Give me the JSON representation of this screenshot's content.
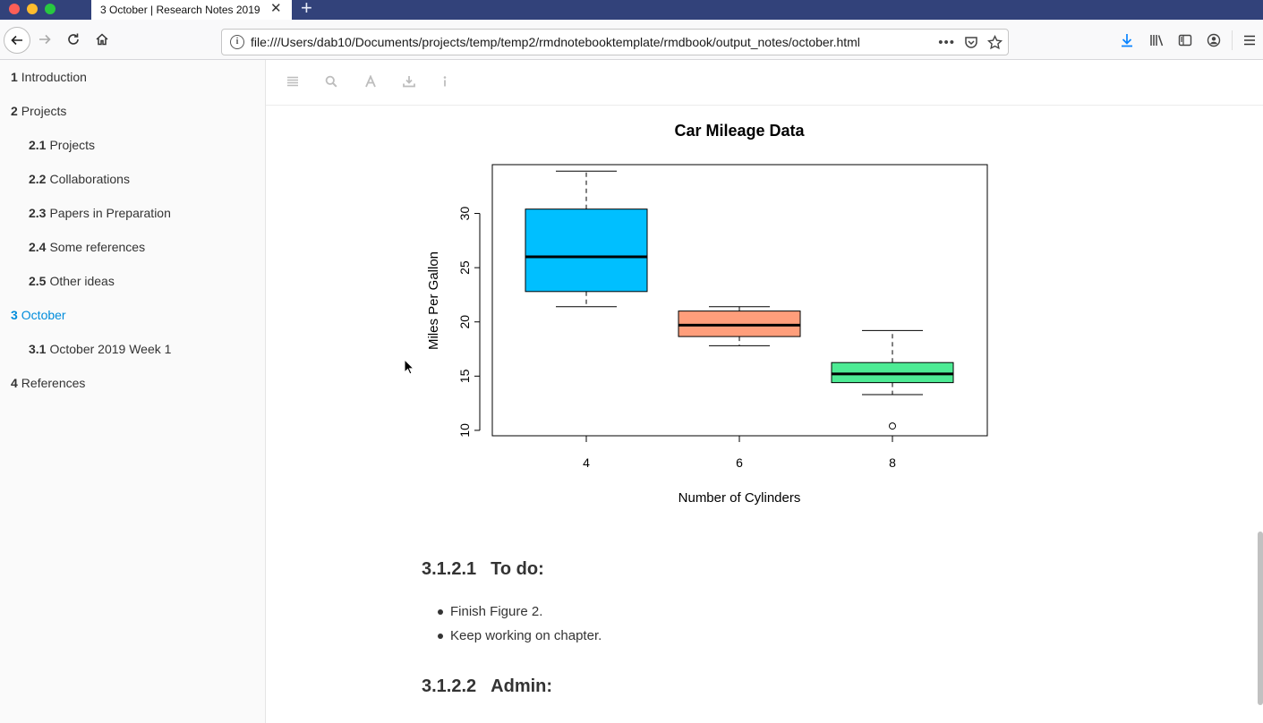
{
  "browser": {
    "tab_title": "3 October | Research Notes 2019",
    "tab_close": "✕",
    "new_tab": "+",
    "url": "file:///Users/dab10/Documents/projects/temp/temp2/rmdnotebooktemplate/rmdbook/output_notes/october.html"
  },
  "sidebar": {
    "items": [
      {
        "num": "1",
        "label": "Introduction"
      },
      {
        "num": "2",
        "label": "Projects"
      },
      {
        "num": "2.1",
        "label": "Projects"
      },
      {
        "num": "2.2",
        "label": "Collaborations"
      },
      {
        "num": "2.3",
        "label": "Papers in Preparation"
      },
      {
        "num": "2.4",
        "label": "Some references"
      },
      {
        "num": "2.5",
        "label": "Other ideas"
      },
      {
        "num": "3",
        "label": "October"
      },
      {
        "num": "3.1",
        "label": "October 2019 Week 1"
      },
      {
        "num": "4",
        "label": "References"
      }
    ]
  },
  "content": {
    "section_todo": {
      "num": "3.1.2.1",
      "title": "To do:"
    },
    "todo_items": [
      "Finish Figure 2.",
      "Keep working on chapter."
    ],
    "section_admin": {
      "num": "3.1.2.2",
      "title": "Admin:"
    }
  },
  "chart_data": {
    "type": "boxplot",
    "title": "Car Mileage Data",
    "xlabel": "Number of Cylinders",
    "ylabel": "Miles Per Gallon",
    "categories": [
      "4",
      "6",
      "8"
    ],
    "ylim": [
      9.5,
      34.5
    ],
    "yticks": [
      "10",
      "15",
      "20",
      "25",
      "30"
    ],
    "boxes": [
      {
        "category": "4",
        "min": 21.4,
        "q1": 22.8,
        "median": 26.0,
        "q3": 30.4,
        "max": 33.9,
        "outliers": [],
        "color": "#00bfff"
      },
      {
        "category": "6",
        "min": 17.8,
        "q1": 18.65,
        "median": 19.7,
        "q3": 21.0,
        "max": 21.4,
        "outliers": [],
        "color": "#ff9e7b"
      },
      {
        "category": "8",
        "min": 13.3,
        "q1": 14.4,
        "median": 15.2,
        "q3": 16.25,
        "max": 19.2,
        "outliers": [
          10.4
        ],
        "color": "#4deb94"
      }
    ],
    "grid": false
  }
}
